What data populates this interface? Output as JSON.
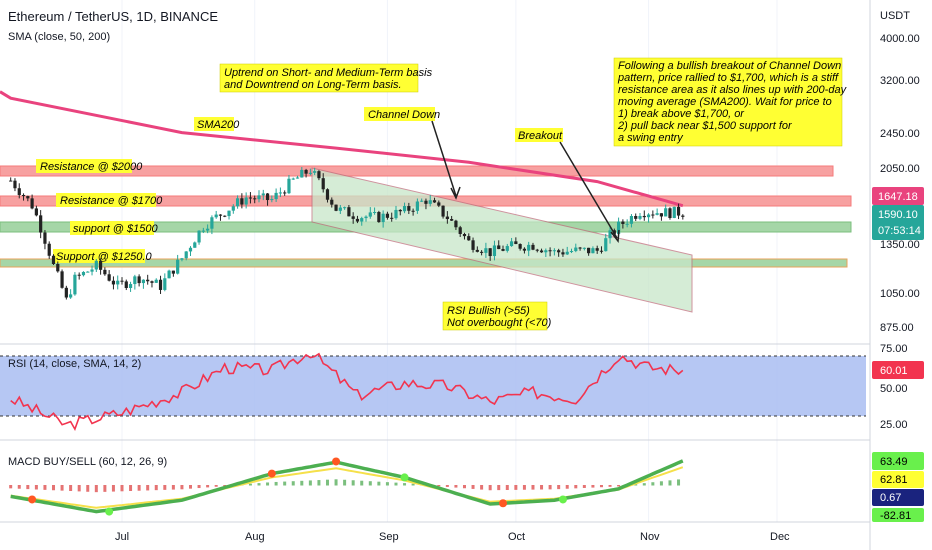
{
  "header": {
    "title": "Ethereum / TetherUS, 1D, BINANCE",
    "indicator": "SMA (close, 50, 200)"
  },
  "price_axis": {
    "unit": "USDT",
    "ticks": [
      "4000.00",
      "3200.00",
      "2450.00",
      "2050.00",
      "1350.00",
      "1050.00",
      "875.00"
    ],
    "badges": {
      "sma_value": "1647.18",
      "last_price": "1590.10",
      "countdown": "07:53:14"
    }
  },
  "rsi_axis": {
    "ticks": [
      "75.00",
      "50.00",
      "25.00"
    ],
    "current": "60.01"
  },
  "macd_axis": {
    "values": [
      "63.49",
      "62.81",
      "0.67",
      "-82.81"
    ]
  },
  "time_axis": {
    "labels": [
      "Jul",
      "Aug",
      "Sep",
      "Oct",
      "Nov",
      "Dec"
    ]
  },
  "bands": [
    {
      "label": "Resistance @ $2000",
      "price": 2000
    },
    {
      "label": "Resistance @ $1700",
      "price": 1700
    },
    {
      "label": "support @ $1500",
      "price": 1500
    },
    {
      "label": "Support @ $1250.0",
      "price": 1250
    }
  ],
  "annotations": {
    "trend_note_lines": [
      "Uptrend on Short- and Medium-Term basis",
      "and Downtrend on Long-Term basis."
    ],
    "sma200_label": "SMA200",
    "channel_label": "Channel Down",
    "breakout_label": "Breakout",
    "analysis_lines": [
      "Following a bullish breakout of Channel Down",
      "pattern, price rallied to $1,700, which is a stiff",
      "resistance area as it also lines up with 200-day",
      "moving average (SMA200). Wait for price to",
      "1) break above $1,700, or",
      "2) pull back near $1,500 support for",
      "a swing entry"
    ],
    "rsi_note_lines": [
      "RSI Bullish (>55)",
      "Not overbought (<70)"
    ]
  },
  "rsi_panel": {
    "title": "RSI (14, close, SMA, 14, 2)",
    "upper": 70,
    "lower": 30
  },
  "macd_panel": {
    "title": "MACD BUY/SELL (60, 12, 26, 9)"
  },
  "colors": {
    "sma200": "#e9437e",
    "resistance_band": "#f7a1a1",
    "support_band": "#a5d6a7",
    "channel_fill": "#c8e6c9",
    "candle_up": "#26a69a",
    "candle_down": "#222222",
    "rsi_line": "#f2344f",
    "rsi_fill": "#a9bdf1",
    "note_bg": "#ffff33"
  },
  "chart_data": [
    {
      "type": "candlestick",
      "title": "Ethereum / TetherUS, 1D, BINANCE",
      "unit": "USDT",
      "scale": "log",
      "x": [
        "Jun 05",
        "Jun 10",
        "Jun 15",
        "Jun 18",
        "Jun 20",
        "Jun 25",
        "Jun 30",
        "Jul 05",
        "Jul 10",
        "Jul 15",
        "Jul 20",
        "Jul 25",
        "Jul 30",
        "Aug 05",
        "Aug 10",
        "Aug 14",
        "Aug 20",
        "Aug 25",
        "Aug 30",
        "Sep 05",
        "Sep 10",
        "Sep 15",
        "Sep 20",
        "Sep 25",
        "Sep 30",
        "Oct 05",
        "Oct 10",
        "Oct 15",
        "Oct 20",
        "Oct 25",
        "Oct 30",
        "Nov 05",
        "Nov 09"
      ],
      "close": [
        1880,
        1650,
        1200,
        1000,
        1120,
        1200,
        1080,
        1130,
        1080,
        1250,
        1480,
        1600,
        1720,
        1700,
        1880,
        1990,
        1620,
        1560,
        1550,
        1600,
        1700,
        1550,
        1360,
        1290,
        1330,
        1340,
        1290,
        1300,
        1300,
        1480,
        1600,
        1590,
        1590
      ],
      "sma200": {
        "x": [
          "Jun 05",
          "Jul 15",
          "Aug 20",
          "Sep 20",
          "Oct 20",
          "Nov 09"
        ],
        "values": [
          2900,
          2420,
          2230,
          2070,
          1870,
          1647.18
        ]
      },
      "yticks": [
        875,
        1050,
        1350,
        2050,
        2450,
        3200,
        4000
      ]
    },
    {
      "type": "line",
      "title": "RSI (14, close, SMA, 14, 2)",
      "x": [
        "Jun 05",
        "Jun 18",
        "Jul 01",
        "Jul 15",
        "Jul 25",
        "Aug 05",
        "Aug 14",
        "Aug 25",
        "Sep 05",
        "Sep 15",
        "Sep 25",
        "Oct 05",
        "Oct 15",
        "Oct 25",
        "Nov 01",
        "Nov 09"
      ],
      "values": [
        42,
        25,
        33,
        46,
        62,
        60,
        72,
        44,
        52,
        50,
        40,
        46,
        42,
        70,
        62,
        60.01
      ],
      "ylim": [
        20,
        80
      ],
      "yticks": [
        25,
        50,
        75
      ]
    },
    {
      "type": "line",
      "title": "MACD BUY/SELL (60, 12, 26, 9)",
      "x": [
        "Jun 05",
        "Jun 25",
        "Jul 15",
        "Aug 05",
        "Aug 20",
        "Sep 05",
        "Sep 25",
        "Oct 10",
        "Oct 25",
        "Nov 09"
      ],
      "values": [
        -30,
        -70,
        -40,
        30,
        60,
        20,
        -50,
        -40,
        -10,
        63.49
      ]
    }
  ]
}
